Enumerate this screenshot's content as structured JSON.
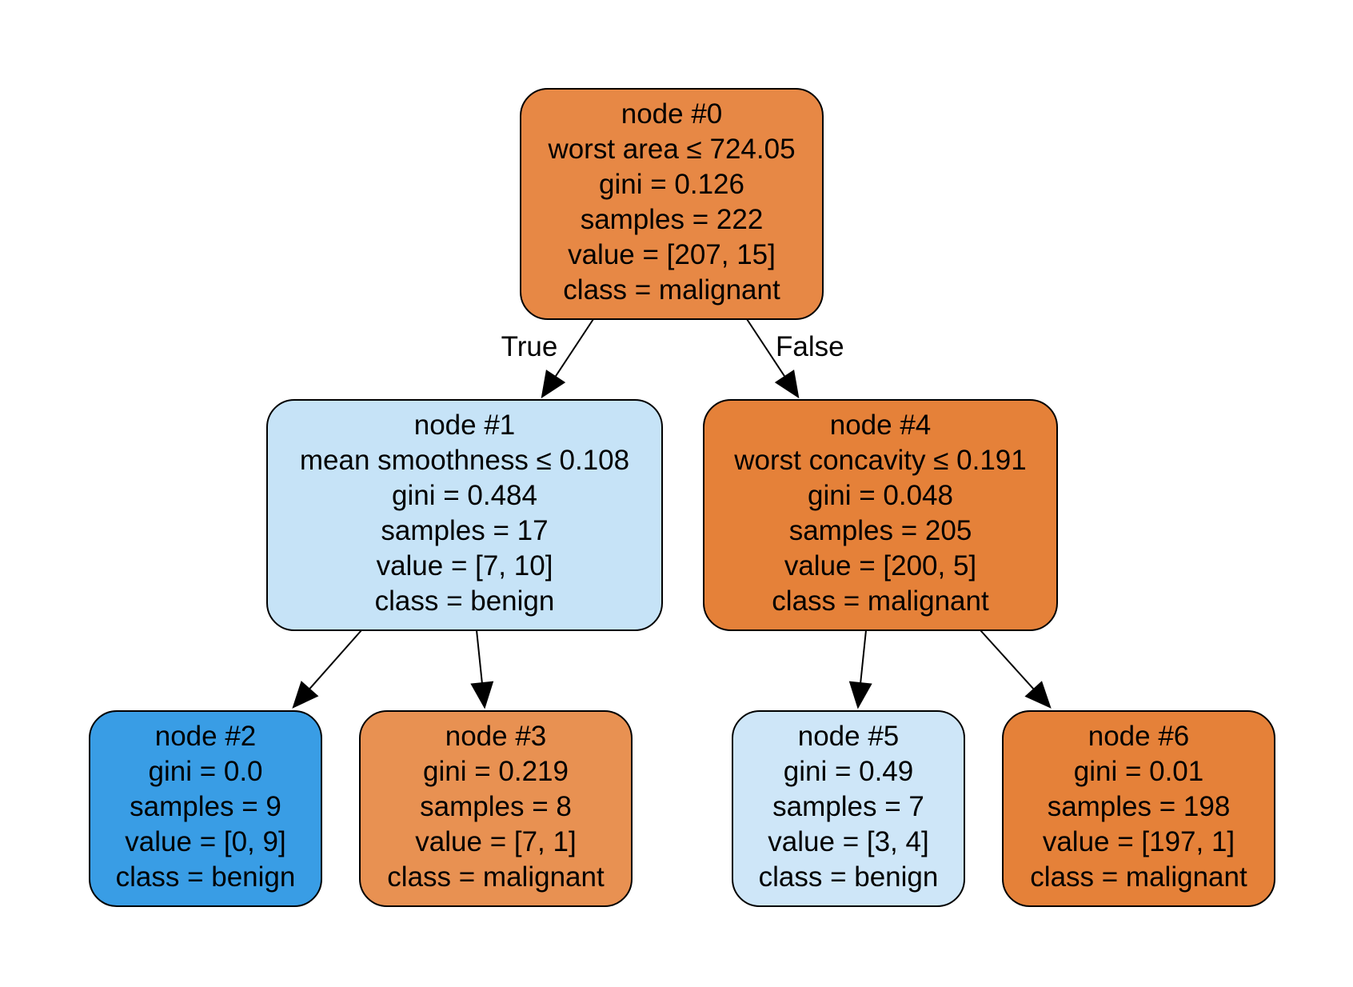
{
  "colors": {
    "malignant_strong": "#e58139",
    "malignant_mid": "#e78845",
    "malignant_light": "#e89152",
    "benign_strong": "#399de5",
    "benign_light": "#c6e3f7",
    "benign_lighter": "#cee6f8",
    "border": "#000000"
  },
  "nodes": [
    {
      "id": "0",
      "lines": [
        "node #0",
        "worst area ≤ 724.05",
        "gini = 0.126",
        "samples = 222",
        "value = [207, 15]",
        "class = malignant"
      ],
      "fill_key": "malignant_mid"
    },
    {
      "id": "1",
      "lines": [
        "node #1",
        "mean smoothness ≤ 0.108",
        "gini = 0.484",
        "samples = 17",
        "value = [7, 10]",
        "class = benign"
      ],
      "fill_key": "benign_light"
    },
    {
      "id": "2",
      "lines": [
        "node #2",
        "gini = 0.0",
        "samples = 9",
        "value = [0, 9]",
        "class = benign"
      ],
      "fill_key": "benign_strong"
    },
    {
      "id": "3",
      "lines": [
        "node #3",
        "gini = 0.219",
        "samples = 8",
        "value = [7, 1]",
        "class = malignant"
      ],
      "fill_key": "malignant_light"
    },
    {
      "id": "4",
      "lines": [
        "node #4",
        "worst concavity ≤ 0.191",
        "gini = 0.048",
        "samples = 205",
        "value = [200, 5]",
        "class = malignant"
      ],
      "fill_key": "malignant_strong"
    },
    {
      "id": "5",
      "lines": [
        "node #5",
        "gini = 0.49",
        "samples = 7",
        "value = [3, 4]",
        "class = benign"
      ],
      "fill_key": "benign_lighter"
    },
    {
      "id": "6",
      "lines": [
        "node #6",
        "gini = 0.01",
        "samples = 198",
        "value = [197, 1]",
        "class = malignant"
      ],
      "fill_key": "malignant_strong"
    }
  ],
  "edges": [
    {
      "from": "0",
      "to": "1",
      "label": "True"
    },
    {
      "from": "0",
      "to": "4",
      "label": "False"
    },
    {
      "from": "1",
      "to": "2",
      "label": ""
    },
    {
      "from": "1",
      "to": "3",
      "label": ""
    },
    {
      "from": "4",
      "to": "5",
      "label": ""
    },
    {
      "from": "4",
      "to": "6",
      "label": ""
    }
  ]
}
